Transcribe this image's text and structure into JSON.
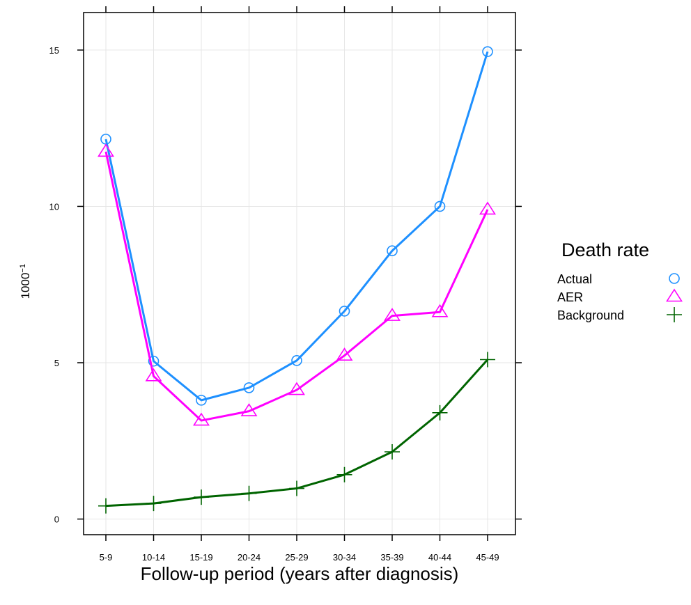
{
  "chart_data": {
    "type": "line",
    "xlabel": "Follow-up period (years after diagnosis)",
    "ylabel": "1000",
    "ylabel_superscript": "−1",
    "categories": [
      "5-9",
      "10-14",
      "15-19",
      "20-24",
      "25-29",
      "30-34",
      "35-39",
      "40-44",
      "45-49"
    ],
    "ylim": [
      -0.5,
      16.2
    ],
    "yticks": [
      0,
      5,
      10,
      15
    ],
    "grid": true,
    "legend": {
      "title": "Death rate",
      "position": "right"
    },
    "series": [
      {
        "name": "Actual",
        "marker": "circle",
        "color": "#1e90ff",
        "values": [
          12.15,
          5.05,
          3.8,
          4.2,
          5.07,
          6.65,
          8.58,
          10.0,
          14.95
        ]
      },
      {
        "name": "AER",
        "marker": "triangle",
        "color": "#ff00ff",
        "values": [
          11.75,
          4.57,
          3.15,
          3.45,
          4.13,
          5.23,
          6.5,
          6.62,
          9.9
        ]
      },
      {
        "name": "Background",
        "marker": "plus",
        "color": "#006400",
        "values": [
          0.42,
          0.5,
          0.7,
          0.82,
          0.98,
          1.42,
          2.15,
          3.4,
          5.1
        ]
      }
    ]
  }
}
